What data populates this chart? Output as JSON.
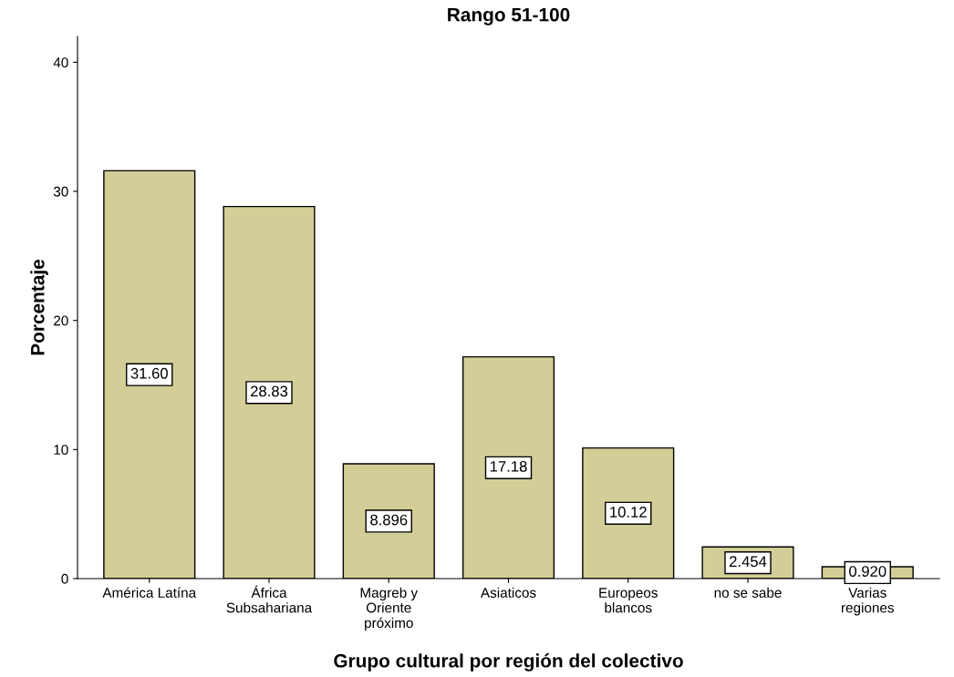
{
  "chart_data": {
    "type": "bar",
    "title": "Rango 51-100",
    "xlabel": "Grupo cultural por región del colectivo",
    "ylabel": "Porcentaje",
    "categories": [
      "América Latína",
      "África\nSubsahariana",
      "Magreb y\nOriente\npróximo",
      "Asiaticos",
      "Europeos\nblancos",
      "no se sabe",
      "Varias\nregiones"
    ],
    "values": [
      31.6,
      28.83,
      8.896,
      17.18,
      10.12,
      2.454,
      0.92
    ],
    "value_labels": [
      "31.60",
      "28.83",
      "8.896",
      "17.18",
      "10.12",
      "2.454",
      "0.920"
    ],
    "color": "#d3ce97",
    "ylim": [
      0,
      42
    ],
    "yticks": [
      0,
      10,
      20,
      30,
      40
    ],
    "grid": false
  }
}
